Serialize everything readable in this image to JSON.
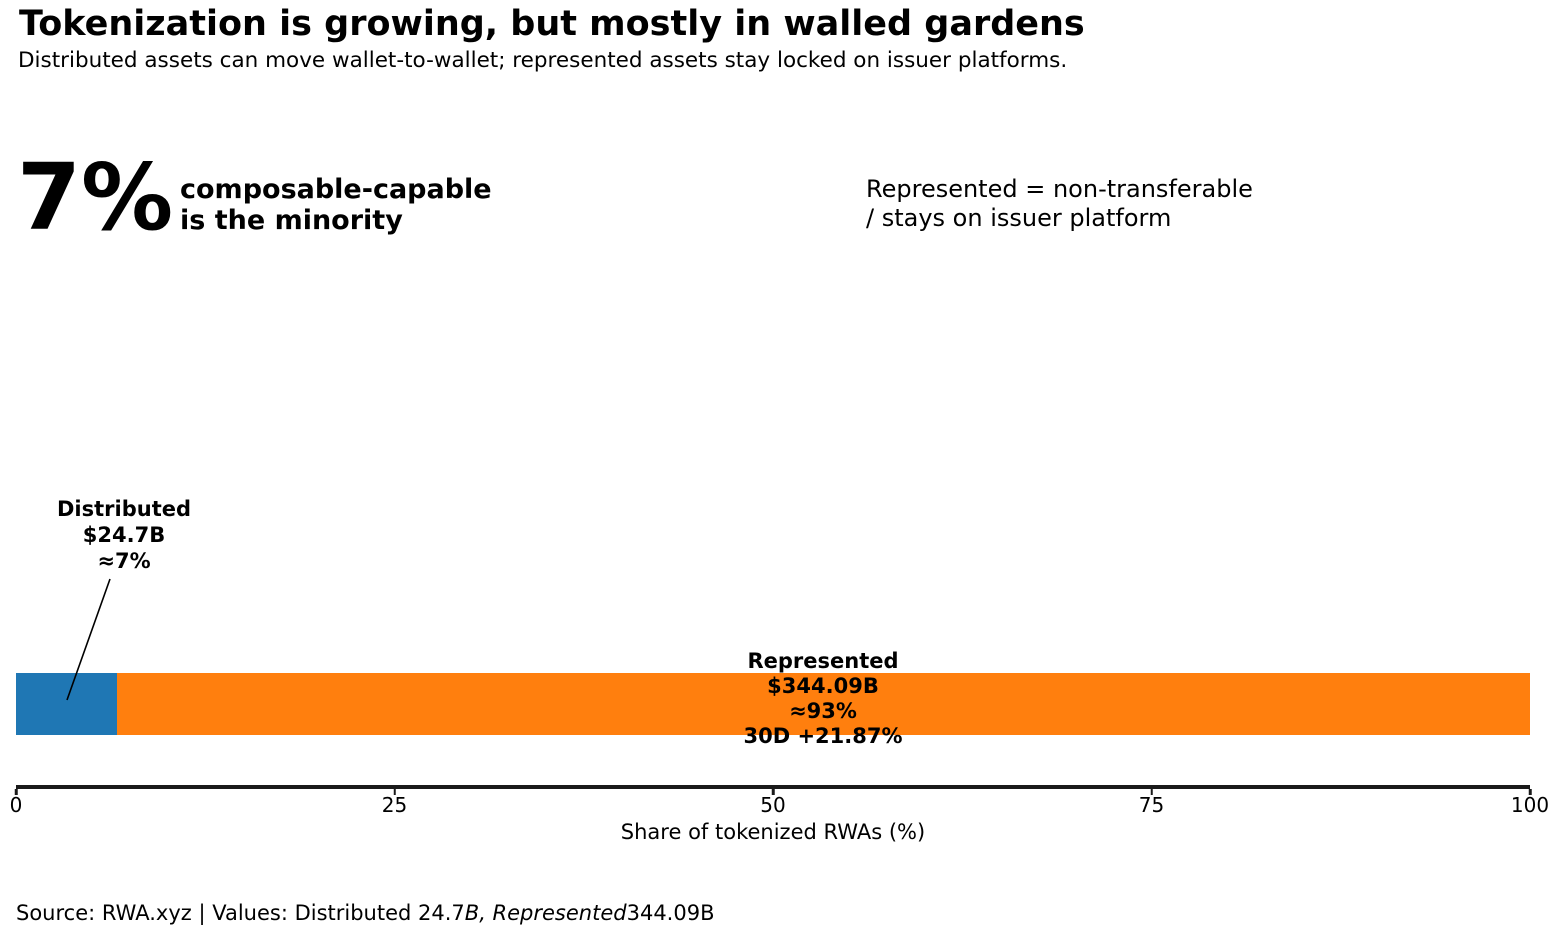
{
  "header": {
    "title": "Tokenization is growing, but mostly in walled gardens",
    "subtitle": "Distributed assets can move wallet-to-wallet; represented assets stay locked on issuer platforms."
  },
  "stat": {
    "value": "7%",
    "caption_line1": "composable-capable",
    "caption_line2": "is the minority"
  },
  "note": {
    "line1": "Represented = non-transferable",
    "line2": "/ stays on issuer platform"
  },
  "chart_data": {
    "type": "bar",
    "orientation": "horizontal",
    "stacked": true,
    "categories": [
      "Distributed",
      "Represented"
    ],
    "series": [
      {
        "name": "Distributed",
        "value_usd_billions": 24.7,
        "share_pct": 7,
        "color": "#1f77b4"
      },
      {
        "name": "Represented",
        "value_usd_billions": 344.09,
        "share_pct": 93,
        "color": "#ff7f0e",
        "change_30d_pct": 21.87
      }
    ],
    "xlabel": "Share of tokenized RWAs (%)",
    "xlim": [
      0,
      100
    ],
    "xticks": [
      0,
      25,
      50,
      75,
      100
    ],
    "grid": false,
    "legend": "none"
  },
  "axis": {
    "tick_labels": [
      "0",
      "25",
      "50",
      "75",
      "100"
    ],
    "xlabel": "Share of tokenized RWAs (%)"
  },
  "annotations": {
    "distributed": {
      "lines": [
        "Distributed",
        "$24.7B",
        "≈7%"
      ]
    },
    "represented": {
      "lines": [
        "Represented",
        "$344.09B",
        "≈93%",
        "30D +21.87%"
      ]
    }
  },
  "source": {
    "prefix": "Source: RWA.xyz | Values: Distributed 24.7",
    "italic": "B, Represented",
    "suffix": "344.09B"
  }
}
